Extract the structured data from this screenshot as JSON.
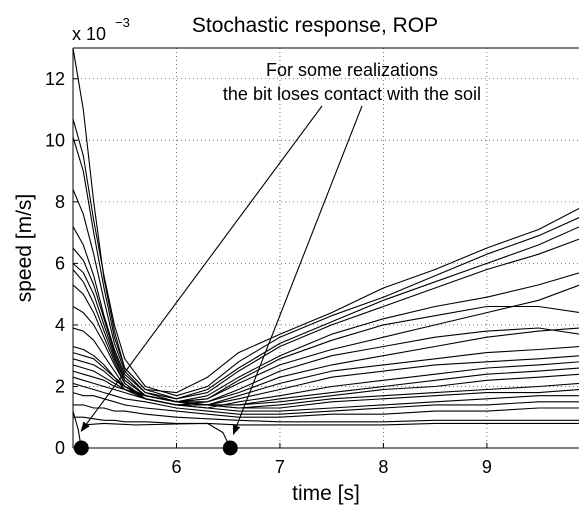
{
  "chart_data": {
    "type": "line",
    "title": "Stochastic response, ROP",
    "xlabel": "time [s]",
    "ylabel": "speed [m/s]",
    "y_exponent_label": "x 10",
    "y_exponent_power": "−3",
    "xlim": [
      5,
      9.9
    ],
    "ylim": [
      0,
      13
    ],
    "xticks": [
      6,
      7,
      8,
      9
    ],
    "yticks": [
      0,
      2,
      4,
      6,
      8,
      10,
      12
    ],
    "grid": true,
    "annotation": {
      "lines": [
        "For some realizations",
        "the bit loses contact with the soil"
      ],
      "arrow_targets": [
        [
          5.08,
          0.55
        ],
        [
          6.55,
          0.45
        ]
      ]
    },
    "contact_loss_points": [
      {
        "x": 5.08,
        "y": 0
      },
      {
        "x": 6.52,
        "y": 0
      }
    ],
    "series": [
      {
        "x": [
          5.0,
          5.1,
          5.2,
          5.3,
          5.4,
          5.5,
          5.7,
          6.0,
          6.3,
          6.6,
          7.0,
          7.5,
          8.0,
          8.5,
          9.0,
          9.5,
          9.9
        ],
        "values": [
          13.0,
          11.0,
          8.0,
          5.5,
          3.8,
          2.6,
          1.9,
          1.8,
          2.3,
          3.1,
          3.7,
          4.4,
          5.2,
          5.8,
          6.5,
          7.1,
          7.8
        ]
      },
      {
        "x": [
          5.0,
          5.1,
          5.2,
          5.3,
          5.4,
          5.5,
          5.7,
          6.0,
          6.3,
          6.6,
          7.0,
          7.5,
          8.0,
          8.5,
          9.0,
          9.5,
          9.9
        ],
        "values": [
          10.7,
          9.5,
          7.4,
          5.6,
          4.0,
          2.9,
          2.0,
          1.7,
          2.0,
          2.8,
          3.6,
          4.3,
          4.9,
          5.6,
          6.3,
          6.9,
          7.5
        ]
      },
      {
        "x": [
          5.0,
          5.1,
          5.2,
          5.3,
          5.4,
          5.5,
          5.7,
          6.0,
          6.3,
          6.6,
          7.0,
          7.5,
          8.0,
          8.5,
          9.0,
          9.5,
          9.9
        ],
        "values": [
          10.1,
          9.0,
          7.0,
          5.2,
          3.6,
          2.6,
          1.9,
          1.6,
          1.9,
          2.6,
          3.4,
          4.1,
          4.8,
          5.4,
          6.0,
          6.6,
          7.2
        ]
      },
      {
        "x": [
          5.0,
          5.1,
          5.2,
          5.3,
          5.4,
          5.5,
          5.7,
          6.0,
          6.3,
          6.6,
          7.0,
          7.5,
          8.0,
          8.5,
          9.0,
          9.5,
          9.9
        ],
        "values": [
          8.4,
          7.6,
          6.3,
          4.8,
          3.4,
          2.5,
          1.8,
          1.6,
          1.8,
          2.5,
          3.3,
          4.0,
          4.6,
          5.2,
          5.8,
          6.3,
          6.8
        ]
      },
      {
        "x": [
          5.0,
          5.1,
          5.2,
          5.3,
          5.4,
          5.5,
          5.7,
          6.0,
          6.3,
          6.6,
          7.0,
          7.5,
          8.0,
          8.5,
          9.0,
          9.5,
          9.9
        ],
        "values": [
          7.2,
          6.6,
          5.6,
          4.3,
          3.2,
          2.4,
          1.8,
          1.5,
          1.7,
          2.3,
          3.0,
          3.7,
          4.2,
          4.6,
          4.9,
          5.3,
          5.7
        ]
      },
      {
        "x": [
          5.0,
          5.1,
          5.2,
          5.3,
          5.4,
          5.5,
          5.7,
          6.0,
          6.3,
          6.6,
          7.0,
          7.5,
          8.0,
          8.5,
          9.0,
          9.5,
          9.9
        ],
        "values": [
          6.5,
          6.1,
          5.3,
          4.2,
          3.1,
          2.3,
          1.7,
          1.5,
          1.6,
          2.2,
          2.9,
          3.5,
          4.0,
          4.3,
          4.6,
          4.6,
          4.4
        ]
      },
      {
        "x": [
          5.0,
          5.1,
          5.2,
          5.3,
          5.4,
          5.5,
          5.7,
          6.0,
          6.3,
          6.6,
          7.0,
          7.5,
          8.0,
          8.5,
          9.0,
          9.5,
          9.9
        ],
        "values": [
          6.0,
          5.7,
          5.0,
          4.0,
          3.0,
          2.2,
          1.7,
          1.5,
          1.6,
          2.1,
          2.7,
          3.2,
          3.6,
          4.0,
          4.4,
          4.8,
          5.3
        ]
      },
      {
        "x": [
          5.0,
          5.1,
          5.2,
          5.3,
          5.4,
          5.5,
          5.7,
          6.0,
          6.3,
          6.6,
          7.0,
          7.5,
          8.0,
          8.5,
          9.0,
          9.5,
          9.9
        ],
        "values": [
          5.8,
          5.4,
          4.7,
          3.8,
          2.9,
          2.2,
          1.7,
          1.5,
          1.5,
          1.9,
          2.5,
          3.0,
          3.3,
          3.6,
          3.8,
          3.9,
          3.7
        ]
      },
      {
        "x": [
          5.0,
          5.1,
          5.2,
          5.3,
          5.4,
          5.5,
          5.7,
          6.0,
          6.3,
          6.6,
          7.0,
          7.5,
          8.0,
          8.5,
          9.0,
          9.5,
          9.9
        ],
        "values": [
          5.3,
          5.0,
          4.4,
          3.6,
          2.8,
          2.1,
          1.6,
          1.4,
          1.5,
          1.8,
          2.3,
          2.7,
          3.0,
          3.3,
          3.6,
          3.8,
          3.9
        ]
      },
      {
        "x": [
          5.0,
          5.1,
          5.2,
          5.3,
          5.4,
          5.5,
          5.7,
          6.0,
          6.3,
          6.6,
          7.0,
          7.5,
          8.0,
          8.5,
          9.0,
          9.5,
          9.9
        ],
        "values": [
          4.6,
          4.4,
          4.0,
          3.4,
          2.7,
          2.1,
          1.6,
          1.4,
          1.4,
          1.7,
          2.1,
          2.5,
          2.7,
          2.9,
          3.1,
          3.2,
          3.3
        ]
      },
      {
        "x": [
          5.0,
          5.1,
          5.2,
          5.3,
          5.4,
          5.5,
          5.7,
          6.0,
          6.3,
          6.6,
          7.0,
          7.5,
          8.0,
          8.5,
          9.0,
          9.5,
          9.9
        ],
        "values": [
          3.9,
          3.8,
          3.5,
          3.0,
          2.5,
          2.0,
          1.6,
          1.4,
          1.4,
          1.6,
          1.9,
          2.3,
          2.5,
          2.7,
          2.8,
          2.9,
          3.0
        ]
      },
      {
        "x": [
          5.0,
          5.1,
          5.2,
          5.3,
          5.4,
          5.5,
          5.7,
          6.0,
          6.3,
          6.6,
          7.0,
          7.5,
          8.0,
          8.5,
          9.0,
          9.5,
          9.9
        ],
        "values": [
          3.3,
          3.2,
          3.0,
          2.7,
          2.3,
          1.9,
          1.6,
          1.4,
          1.3,
          1.5,
          1.7,
          2.0,
          2.2,
          2.4,
          2.6,
          2.7,
          2.8
        ]
      },
      {
        "x": [
          5.0,
          5.1,
          5.2,
          5.3,
          5.4,
          5.5,
          5.7,
          6.0,
          6.3,
          6.6,
          7.0,
          7.5,
          8.0,
          8.5,
          9.0,
          9.5,
          9.9
        ],
        "values": [
          3.1,
          3.0,
          2.9,
          2.6,
          2.3,
          2.0,
          1.7,
          1.5,
          1.4,
          1.4,
          1.6,
          1.8,
          2.0,
          2.2,
          2.4,
          2.5,
          2.6
        ]
      },
      {
        "x": [
          5.0,
          5.1,
          5.2,
          5.3,
          5.4,
          5.5,
          5.7,
          6.0,
          6.3,
          6.6,
          7.0,
          7.5,
          8.0,
          8.5,
          9.0,
          9.5,
          9.9
        ],
        "values": [
          2.9,
          2.8,
          2.7,
          2.5,
          2.2,
          2.0,
          1.7,
          1.5,
          1.4,
          1.4,
          1.5,
          1.7,
          1.9,
          2.0,
          2.2,
          2.3,
          2.4
        ]
      },
      {
        "x": [
          5.0,
          5.1,
          5.2,
          5.3,
          5.4,
          5.5,
          5.7,
          6.0,
          6.3,
          6.6,
          7.0,
          7.5,
          8.0,
          8.5,
          9.0,
          9.5,
          9.9
        ],
        "values": [
          2.7,
          2.6,
          2.5,
          2.3,
          2.1,
          1.9,
          1.7,
          1.5,
          1.4,
          1.3,
          1.4,
          1.6,
          1.7,
          1.8,
          1.9,
          2.0,
          2.1
        ]
      },
      {
        "x": [
          5.0,
          5.1,
          5.2,
          5.3,
          5.4,
          5.5,
          5.7,
          6.0,
          6.3,
          6.6,
          7.0,
          7.5,
          8.0,
          8.5,
          9.0,
          9.5,
          9.9
        ],
        "values": [
          2.5,
          2.4,
          2.3,
          2.2,
          2.0,
          1.9,
          1.7,
          1.5,
          1.4,
          1.3,
          1.3,
          1.5,
          1.6,
          1.7,
          1.8,
          1.8,
          1.9
        ]
      },
      {
        "x": [
          5.0,
          5.1,
          5.2,
          5.3,
          5.4,
          5.5,
          5.7,
          6.0,
          6.3,
          6.6,
          7.0,
          7.5,
          8.0,
          8.5,
          9.0,
          9.5,
          9.9
        ],
        "values": [
          2.3,
          2.2,
          2.1,
          2.0,
          1.9,
          1.8,
          1.6,
          1.4,
          1.3,
          1.2,
          1.2,
          1.3,
          1.4,
          1.5,
          1.6,
          1.7,
          1.7
        ]
      },
      {
        "x": [
          5.0,
          5.1,
          5.2,
          5.3,
          5.4,
          5.5,
          5.7,
          6.0,
          6.3,
          6.6,
          7.0,
          7.5,
          8.0,
          8.5,
          9.0,
          9.5,
          9.9
        ],
        "values": [
          2.1,
          2.0,
          1.9,
          1.8,
          1.7,
          1.6,
          1.5,
          1.3,
          1.2,
          1.1,
          1.1,
          1.2,
          1.3,
          1.4,
          1.4,
          1.5,
          1.5
        ]
      },
      {
        "x": [
          5.0,
          5.1,
          5.2,
          5.3,
          5.4,
          5.5,
          5.7,
          6.0,
          6.3,
          6.6,
          7.0,
          7.5,
          8.0,
          8.5,
          9.0,
          9.5,
          9.9
        ],
        "values": [
          1.8,
          1.7,
          1.7,
          1.6,
          1.5,
          1.4,
          1.3,
          1.2,
          1.1,
          1.0,
          1.0,
          1.1,
          1.1,
          1.2,
          1.2,
          1.3,
          1.3
        ]
      },
      {
        "x": [
          5.0,
          5.1,
          5.2,
          5.3,
          5.4,
          5.5,
          5.7,
          6.0,
          6.3,
          6.6,
          7.0,
          7.5,
          8.0,
          8.5,
          9.0,
          9.5,
          9.9
        ],
        "values": [
          1.4,
          1.4,
          1.3,
          1.3,
          1.2,
          1.2,
          1.1,
          1.0,
          0.95,
          0.9,
          0.85,
          0.85,
          0.85,
          0.9,
          0.9,
          0.9,
          0.9
        ]
      },
      {
        "x": [
          5.0,
          5.1,
          5.2,
          5.3,
          5.4,
          5.5,
          5.7,
          6.0,
          6.3,
          6.6,
          7.0,
          7.5,
          8.0,
          8.5,
          9.0,
          9.5,
          9.9
        ],
        "values": [
          1.0,
          1.0,
          0.95,
          0.9,
          0.9,
          0.85,
          0.85,
          0.8,
          0.8,
          0.75,
          0.75,
          0.75,
          0.75,
          0.8,
          0.8,
          0.8,
          0.8
        ]
      },
      {
        "x": [
          5.0,
          5.05,
          5.08
        ],
        "values": [
          1.2,
          0.6,
          0.0
        ]
      },
      {
        "x": [
          5.1,
          5.3,
          5.6,
          6.0,
          6.3,
          6.45,
          6.52
        ],
        "values": [
          0.75,
          0.8,
          0.75,
          0.78,
          0.8,
          0.5,
          0.0
        ]
      }
    ]
  }
}
